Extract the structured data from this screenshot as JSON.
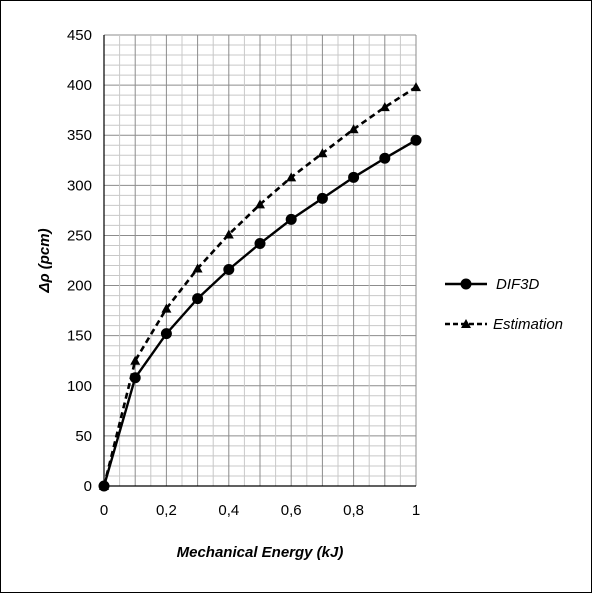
{
  "chart_data": {
    "type": "line",
    "title": "",
    "xlabel": "Mechanical Energy (kJ)",
    "ylabel": "Δρ (pcm)",
    "xlim": [
      0,
      1
    ],
    "ylim": [
      0,
      450
    ],
    "x_ticks": [
      "0",
      "0,2",
      "0,4",
      "0,6",
      "0,8",
      "1"
    ],
    "y_ticks": [
      "0",
      "50",
      "100",
      "150",
      "200",
      "250",
      "300",
      "350",
      "400",
      "450"
    ],
    "grid": true,
    "legend_position": "right",
    "x": [
      0,
      0.1,
      0.2,
      0.3,
      0.4,
      0.5,
      0.6,
      0.7,
      0.8,
      0.9,
      1.0
    ],
    "series": [
      {
        "name": "DIF3D",
        "style": "solid",
        "marker": "circle",
        "color": "#000000",
        "values": [
          0,
          108,
          152,
          187,
          216,
          242,
          266,
          287,
          308,
          327,
          345
        ]
      },
      {
        "name": "Estimation",
        "style": "dashed",
        "marker": "triangle",
        "color": "#000000",
        "values": [
          0,
          125,
          177,
          217,
          251,
          281,
          308,
          332,
          356,
          378,
          398
        ]
      }
    ]
  }
}
